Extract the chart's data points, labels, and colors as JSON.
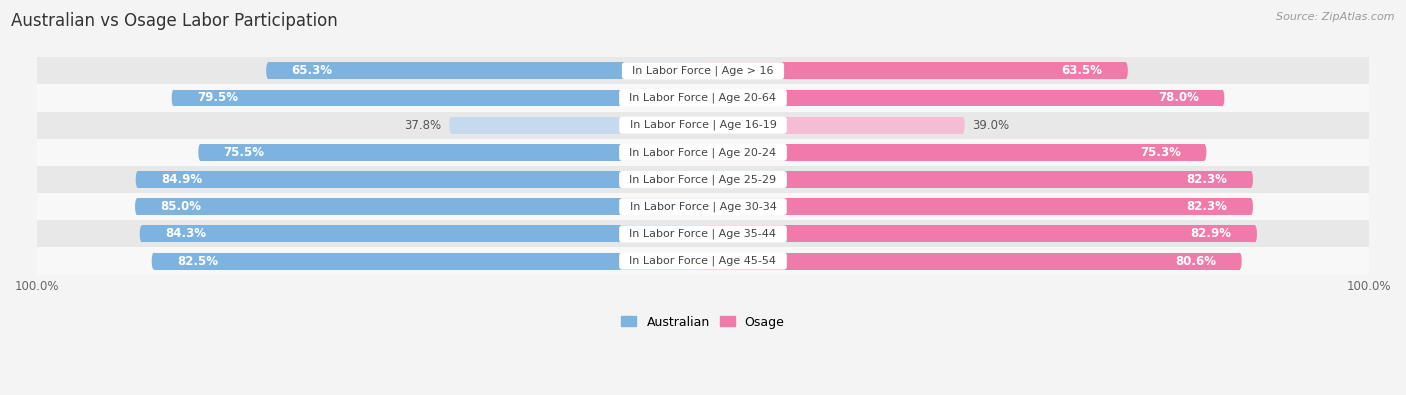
{
  "title": "Australian vs Osage Labor Participation",
  "source": "Source: ZipAtlas.com",
  "categories": [
    "In Labor Force | Age > 16",
    "In Labor Force | Age 20-64",
    "In Labor Force | Age 16-19",
    "In Labor Force | Age 20-24",
    "In Labor Force | Age 25-29",
    "In Labor Force | Age 30-34",
    "In Labor Force | Age 35-44",
    "In Labor Force | Age 45-54"
  ],
  "australian": [
    65.3,
    79.5,
    37.8,
    75.5,
    84.9,
    85.0,
    84.3,
    82.5
  ],
  "osage": [
    63.5,
    78.0,
    39.0,
    75.3,
    82.3,
    82.3,
    82.9,
    80.6
  ],
  "light_rows": [
    2
  ],
  "australian_color": "#7eb3e0",
  "australian_color_light": "#c5d9ef",
  "osage_color": "#f07bab",
  "osage_color_light": "#f5bdd4",
  "bar_height": 0.62,
  "background_color": "#f4f4f4",
  "row_color_even": "#e8e8e8",
  "row_color_odd": "#f8f8f8",
  "title_fontsize": 12,
  "label_fontsize": 8.5,
  "tick_fontsize": 8.5,
  "legend_fontsize": 9,
  "source_fontsize": 8
}
